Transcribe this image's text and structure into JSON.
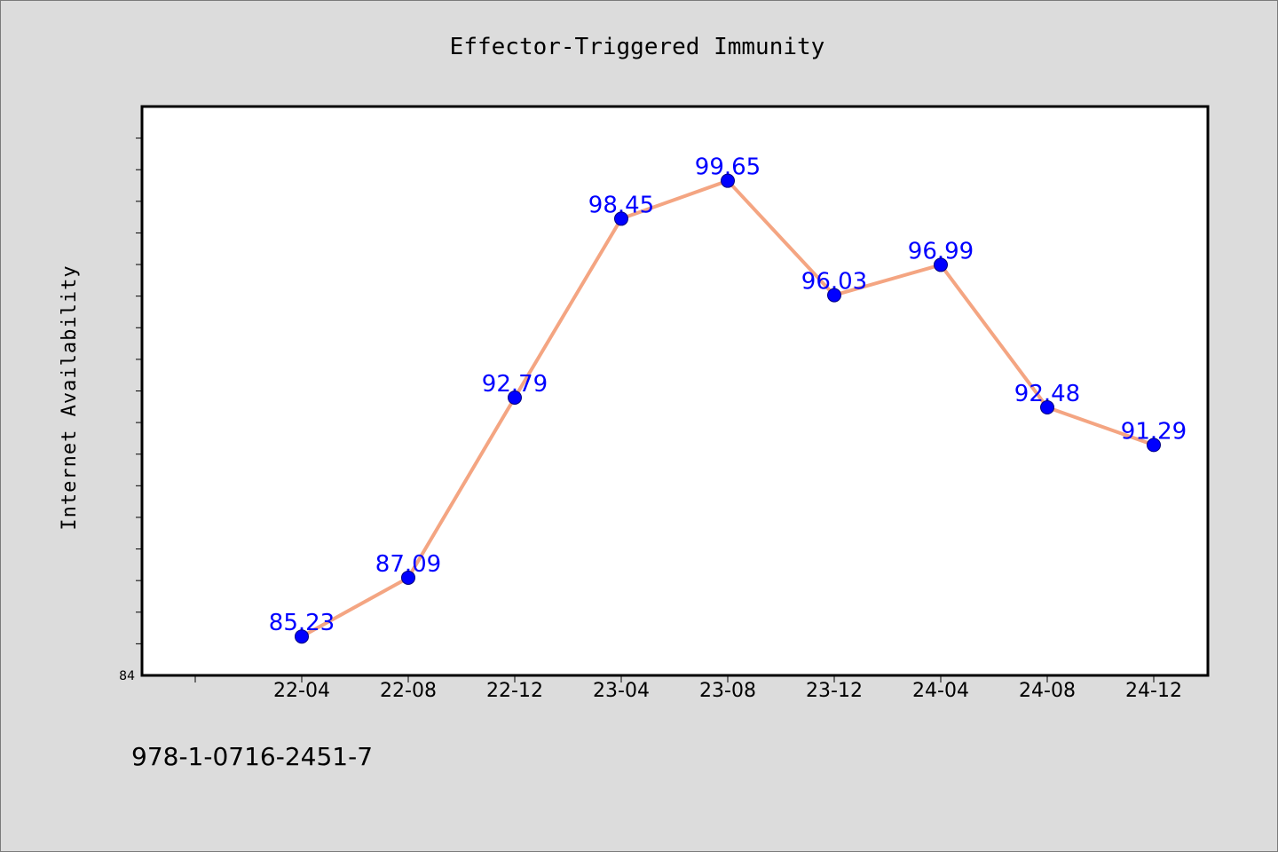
{
  "colors": {
    "background": "#dcdcdc",
    "plot_background": "#ffffff",
    "line": "#f4a582",
    "marker": "#0000ff",
    "data_label": "#0000ff",
    "axis": "#000000"
  },
  "footer": {
    "isbn": "978-1-0716-2451-7"
  },
  "chart_data": {
    "type": "line",
    "title": "Effector-Triggered Immunity",
    "xlabel": "",
    "ylabel": "Internet Availability",
    "categories": [
      "22-04",
      "22-08",
      "22-12",
      "23-04",
      "23-08",
      "23-12",
      "24-04",
      "24-08",
      "24-12"
    ],
    "series": [
      {
        "values": [
          85.23,
          87.09,
          92.79,
          98.45,
          99.65,
          96.03,
          96.99,
          92.48,
          91.29
        ],
        "labels": [
          "85.23",
          "87.09",
          "92.79",
          "98.45",
          "99.65",
          "96.03",
          "96.99",
          "92.48",
          "91.29"
        ]
      }
    ],
    "ylim": [
      84,
      102
    ],
    "ytick_labels": [
      "84"
    ],
    "grid": false,
    "legend": "none"
  }
}
